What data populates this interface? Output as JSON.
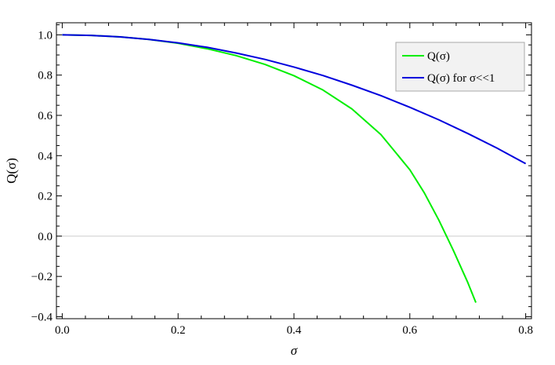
{
  "chart_data": {
    "type": "line",
    "title": "",
    "xlabel": "σ",
    "ylabel": "Q(σ)",
    "xlim": [
      -0.01,
      0.81
    ],
    "ylim": [
      -0.41,
      1.06
    ],
    "x_ticks": [
      0.0,
      0.2,
      0.4,
      0.6,
      0.8
    ],
    "x_tick_labels": [
      "0.0",
      "0.2",
      "0.4",
      "0.6",
      "0.8"
    ],
    "y_ticks": [
      -0.4,
      -0.2,
      0.0,
      0.2,
      0.4,
      0.6,
      0.8,
      1.0
    ],
    "y_tick_labels": [
      "−0.4",
      "−0.2",
      "0.0",
      "0.2",
      "0.4",
      "0.6",
      "0.8",
      "1.0"
    ],
    "grid": false,
    "zero_line": true,
    "legend_position": "top-right",
    "series": [
      {
        "name": "Q(σ)",
        "color": "#00ee00",
        "x": [
          0.0,
          0.05,
          0.1,
          0.15,
          0.2,
          0.25,
          0.3,
          0.35,
          0.4,
          0.45,
          0.5,
          0.55,
          0.6,
          0.625,
          0.65,
          0.675,
          0.7,
          0.714
        ],
        "y": [
          1.0,
          0.997,
          0.99,
          0.977,
          0.958,
          0.931,
          0.897,
          0.853,
          0.797,
          0.726,
          0.632,
          0.505,
          0.33,
          0.215,
          0.08,
          -0.07,
          -0.23,
          -0.33
        ]
      },
      {
        "name": "Q(σ) for σ<<1",
        "color": "#0000dd",
        "x": [
          0.0,
          0.05,
          0.1,
          0.15,
          0.2,
          0.25,
          0.3,
          0.35,
          0.4,
          0.45,
          0.5,
          0.55,
          0.6,
          0.65,
          0.7,
          0.75,
          0.8
        ],
        "y": [
          1.0,
          0.997,
          0.99,
          0.977,
          0.96,
          0.938,
          0.91,
          0.878,
          0.84,
          0.798,
          0.75,
          0.698,
          0.64,
          0.578,
          0.51,
          0.438,
          0.36
        ]
      }
    ]
  }
}
